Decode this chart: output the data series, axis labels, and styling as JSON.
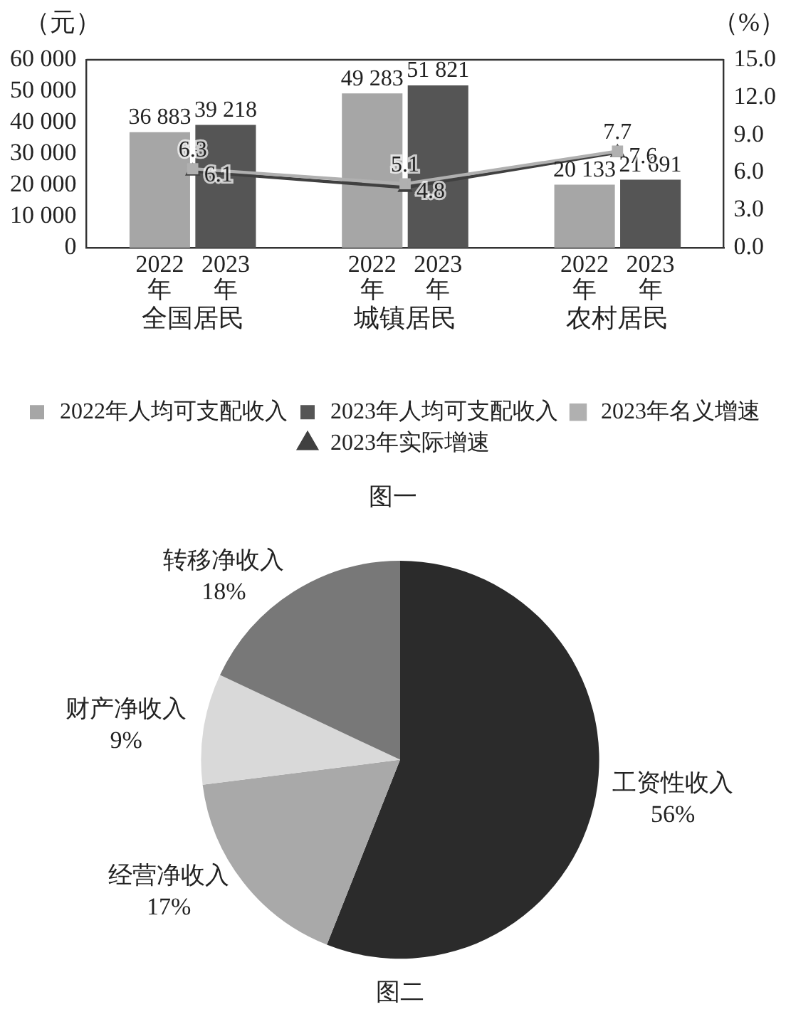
{
  "chart_data": [
    {
      "type": "bar",
      "title": "图一",
      "ylabel": "（元）",
      "y2label": "（%）",
      "categories": [
        "全国居民",
        "城镇居民",
        "农村居民"
      ],
      "series": [
        {
          "name": "2022年人均可支配收入",
          "color": "#a6a6a6",
          "values": [
            36883,
            49283,
            20133
          ],
          "value_labels": [
            "36 883",
            "49 283",
            "20 133"
          ]
        },
        {
          "name": "2023年人均可支配收入",
          "color": "#555555",
          "values": [
            39218,
            51821,
            21691
          ],
          "value_labels": [
            "39 218",
            "51 821",
            "21 691"
          ]
        },
        {
          "name": "2023年名义增速",
          "type": "line",
          "axis": "y2",
          "marker": "square",
          "color": "#b0b0b0",
          "values": [
            6.3,
            5.1,
            7.7
          ],
          "value_labels": [
            "6.3",
            "5.1",
            "7.7"
          ]
        },
        {
          "name": "2023年实际增速",
          "type": "line",
          "axis": "y2",
          "marker": "triangle",
          "color": "#404040",
          "values": [
            6.1,
            4.8,
            7.6
          ],
          "value_labels": [
            "6.1",
            "4.8",
            "7.6"
          ]
        }
      ],
      "ylim": [
        0,
        60000
      ],
      "yticks": [
        0,
        {
          "value": 10000,
          "label": "10 000"
        },
        {
          "value": 20000,
          "label": "20 000"
        },
        {
          "value": 30000,
          "label": "30 000"
        },
        {
          "value": 40000,
          "label": "40 000"
        },
        {
          "value": 50000,
          "label": "50 000"
        },
        {
          "value": 60000,
          "label": "60 000"
        }
      ],
      "y2lim": [
        0,
        15
      ],
      "y2ticks": [
        {
          "value": 0,
          "label": "0.0"
        },
        {
          "value": 3,
          "label": "3.0"
        },
        {
          "value": 6,
          "label": "6.0"
        },
        {
          "value": 9,
          "label": "9.0"
        },
        {
          "value": 12,
          "label": "12.0"
        },
        {
          "value": 15,
          "label": "15.0"
        }
      ],
      "annotations": [
        "2022年",
        "2023年",
        "2022年",
        "2023年",
        "2022年",
        "2023年"
      ],
      "grid": false,
      "legend": "bottom"
    },
    {
      "type": "pie",
      "title": "图二",
      "categories": [
        "工资性收入",
        "经营净收入",
        "财产净收入",
        "转移净收入"
      ],
      "values": [
        56,
        17,
        9,
        18
      ],
      "colors": [
        "#2b2b2b",
        "#a9a9a9",
        "#d9d9d9",
        "#787878"
      ],
      "value_labels": [
        "56%",
        "17%",
        "9%",
        "18%"
      ],
      "legend": false
    }
  ]
}
